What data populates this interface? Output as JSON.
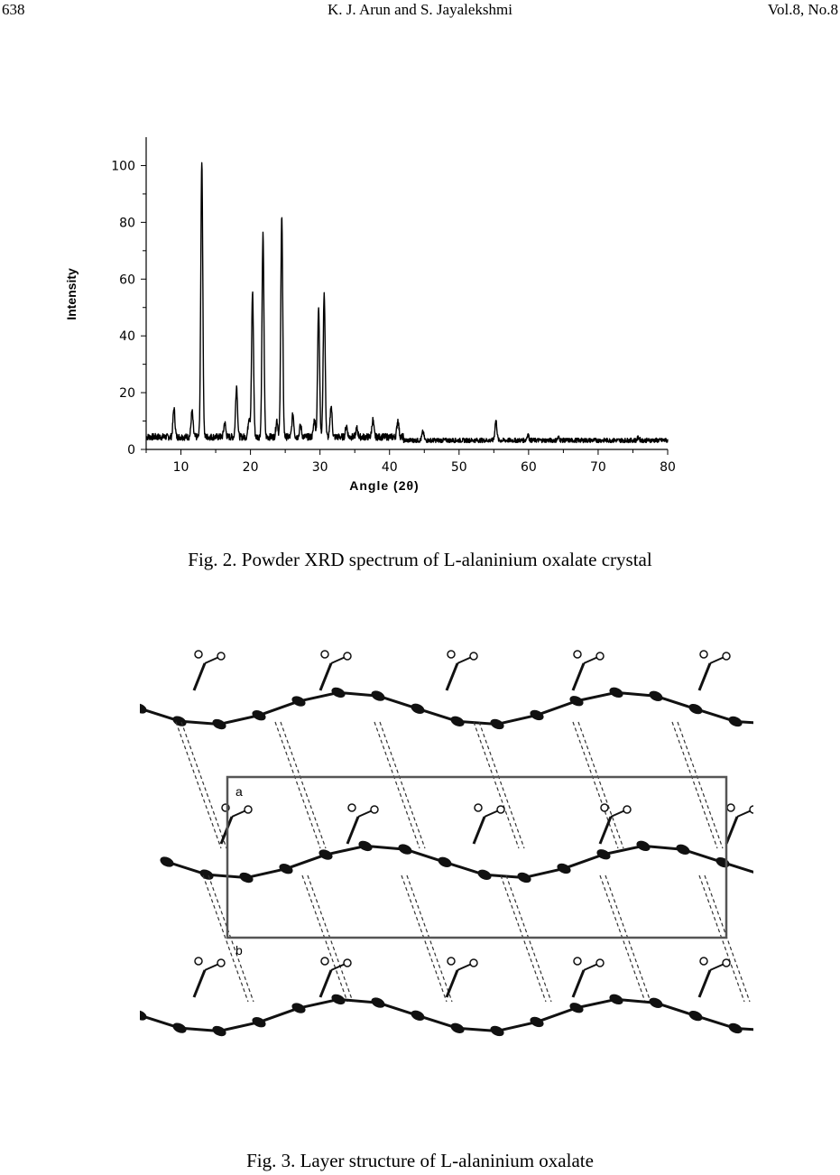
{
  "header": {
    "page_number": "638",
    "authors": "K. J. Arun and S. Jayalekshmi",
    "volume": "Vol.8, No.8"
  },
  "figure2": {
    "caption": "Fig. 2. Powder XRD spectrum of L-alaninium oxalate crystal",
    "chart_data": {
      "type": "line",
      "title": "",
      "xlabel": "Angle (2θ)",
      "ylabel": "Intensity",
      "xlim": [
        5,
        80
      ],
      "ylim": [
        0,
        110
      ],
      "x_ticks": [
        10,
        20,
        30,
        40,
        50,
        60,
        70,
        80
      ],
      "y_ticks": [
        0,
        20,
        40,
        60,
        80,
        100
      ],
      "baseline": 2,
      "peaks": [
        {
          "x": 9.0,
          "y": 12
        },
        {
          "x": 11.6,
          "y": 11
        },
        {
          "x": 13.0,
          "y": 100
        },
        {
          "x": 16.3,
          "y": 7
        },
        {
          "x": 18.0,
          "y": 20
        },
        {
          "x": 19.8,
          "y": 9
        },
        {
          "x": 20.3,
          "y": 53
        },
        {
          "x": 21.8,
          "y": 73
        },
        {
          "x": 23.8,
          "y": 8
        },
        {
          "x": 24.5,
          "y": 80
        },
        {
          "x": 26.1,
          "y": 10
        },
        {
          "x": 27.2,
          "y": 6
        },
        {
          "x": 29.2,
          "y": 8
        },
        {
          "x": 29.8,
          "y": 48
        },
        {
          "x": 30.6,
          "y": 53
        },
        {
          "x": 31.6,
          "y": 13
        },
        {
          "x": 33.8,
          "y": 6
        },
        {
          "x": 35.3,
          "y": 5
        },
        {
          "x": 37.6,
          "y": 8
        },
        {
          "x": 41.2,
          "y": 8
        },
        {
          "x": 44.8,
          "y": 5
        },
        {
          "x": 55.3,
          "y": 9
        },
        {
          "x": 59.9,
          "y": 4
        },
        {
          "x": 64.3,
          "y": 3
        },
        {
          "x": 75.8,
          "y": 3
        }
      ],
      "grid": false
    }
  },
  "figure3": {
    "caption": "Fig. 3. Layer structure of L-alaninium oxalate",
    "cell_label_a": "a",
    "cell_label_b": "b"
  }
}
